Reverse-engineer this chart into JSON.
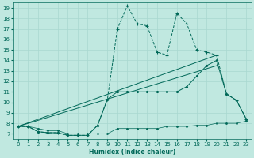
{
  "xlabel": "Humidex (Indice chaleur)",
  "bg_color": "#c0e8e0",
  "line_color": "#006858",
  "grid_color": "#a8d8d0",
  "xlim": [
    -0.5,
    23.5
  ],
  "ylim": [
    6.5,
    19.5
  ],
  "xticks": [
    0,
    1,
    2,
    3,
    4,
    5,
    6,
    7,
    8,
    9,
    10,
    11,
    12,
    13,
    14,
    15,
    16,
    17,
    18,
    19,
    20,
    21,
    22,
    23
  ],
  "yticks": [
    7,
    8,
    9,
    10,
    11,
    12,
    13,
    14,
    15,
    16,
    17,
    18,
    19
  ],
  "spiky_x": [
    0,
    1,
    2,
    3,
    4,
    5,
    6,
    7,
    8,
    9,
    10,
    11,
    12,
    13,
    14,
    15,
    16,
    17,
    18,
    19,
    20,
    21,
    22,
    23
  ],
  "spiky_y": [
    7.7,
    7.7,
    7.2,
    7.1,
    7.1,
    6.85,
    6.85,
    6.85,
    7.8,
    10.3,
    17.0,
    19.2,
    17.5,
    17.3,
    14.8,
    14.5,
    18.5,
    17.5,
    15.0,
    14.8,
    14.5,
    10.8,
    10.2,
    8.4
  ],
  "triangle_x": [
    0,
    1,
    2,
    3,
    4,
    5,
    6,
    7,
    8,
    9,
    10,
    11,
    12,
    13,
    14,
    15,
    16,
    17,
    18,
    19,
    20,
    21,
    22,
    23
  ],
  "triangle_y": [
    7.7,
    7.7,
    7.2,
    7.1,
    7.1,
    6.85,
    6.85,
    6.85,
    7.8,
    10.3,
    11.0,
    11.0,
    11.0,
    11.0,
    11.0,
    11.0,
    11.0,
    11.5,
    12.5,
    13.5,
    14.0,
    10.8,
    10.2,
    8.4
  ],
  "line1_x": [
    0,
    20
  ],
  "line1_y": [
    7.7,
    14.5
  ],
  "line2_x": [
    0,
    20
  ],
  "line2_y": [
    7.7,
    13.5
  ],
  "flat_x": [
    0,
    1,
    2,
    3,
    4,
    5,
    6,
    7,
    8,
    9,
    10,
    11,
    12,
    13,
    14,
    15,
    16,
    17,
    18,
    19,
    20,
    21,
    22,
    23
  ],
  "flat_y": [
    7.7,
    7.7,
    7.5,
    7.3,
    7.3,
    7.0,
    7.0,
    7.0,
    7.0,
    7.0,
    7.5,
    7.5,
    7.5,
    7.5,
    7.5,
    7.7,
    7.7,
    7.7,
    7.8,
    7.8,
    8.0,
    8.0,
    8.0,
    8.2
  ]
}
